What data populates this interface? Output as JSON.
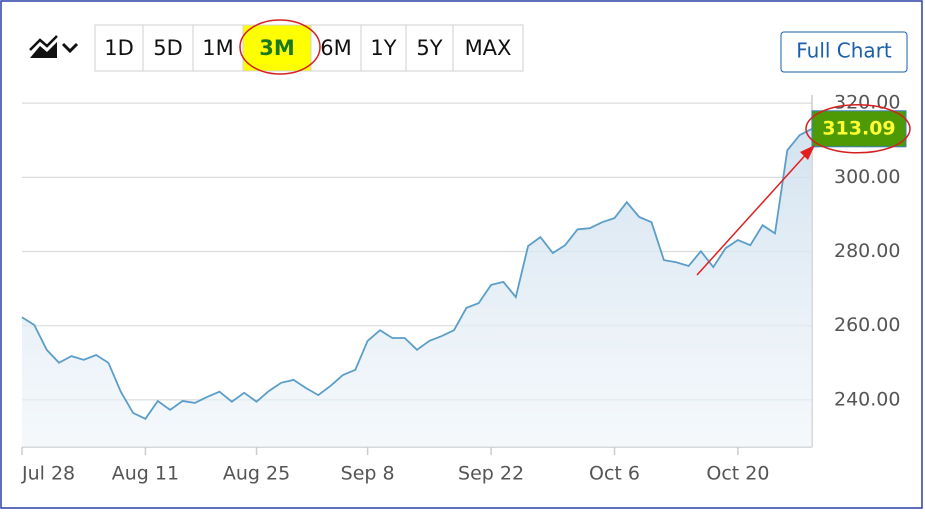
{
  "controls": {
    "ranges": [
      "1D",
      "5D",
      "1M",
      "3M",
      "6M",
      "1Y",
      "5Y",
      "MAX"
    ],
    "selected": 3,
    "full_chart": "Full Chart"
  },
  "chart_data": {
    "type": "line",
    "categories": [
      "Jul 28",
      null,
      null,
      null,
      null,
      null,
      null,
      null,
      null,
      null,
      "Aug 11",
      null,
      null,
      null,
      null,
      null,
      null,
      null,
      null,
      "Aug 25",
      null,
      null,
      null,
      null,
      null,
      null,
      null,
      null,
      "Sep 8",
      null,
      null,
      null,
      null,
      null,
      null,
      null,
      null,
      null,
      "Sep 22",
      null,
      null,
      null,
      null,
      null,
      null,
      null,
      null,
      null,
      "Oct 6",
      null,
      null,
      null,
      null,
      null,
      null,
      null,
      null,
      null,
      "Oct 20",
      null,
      null,
      null,
      null,
      null,
      null
    ],
    "series": [
      {
        "color": "#5b9ec9",
        "values": [
          262.3,
          260.2,
          253.5,
          250.0,
          251.8,
          250.8,
          252.1,
          250.0,
          242.2,
          236.5,
          234.9,
          239.7,
          237.3,
          239.7,
          239.2,
          240.8,
          242.2,
          239.5,
          241.9,
          239.5,
          242.4,
          244.6,
          245.4,
          243.2,
          241.3,
          243.8,
          246.7,
          248.1,
          255.9,
          258.8,
          256.7,
          256.7,
          253.5,
          255.9,
          257.2,
          258.8,
          264.8,
          266.1,
          271.0,
          271.8,
          267.7,
          281.5,
          283.9,
          279.6,
          281.7,
          286.0,
          286.3,
          287.9,
          289.0,
          293.3,
          289.3,
          287.9,
          277.7,
          277.1,
          276.1,
          280.1,
          275.8,
          280.9,
          283.1,
          281.7,
          287.1,
          284.9,
          307.3,
          311.4,
          313.09
        ]
      }
    ],
    "ylim": [
      227.3,
      322.2
    ],
    "yticks": [
      {
        "value": 240,
        "label": "240.00"
      },
      {
        "value": 260,
        "label": "260.00"
      },
      {
        "value": 280,
        "label": "280.00"
      },
      {
        "value": 300,
        "label": "300.00"
      },
      {
        "value": 320,
        "label": "320.00"
      }
    ],
    "grid": true
  }
}
